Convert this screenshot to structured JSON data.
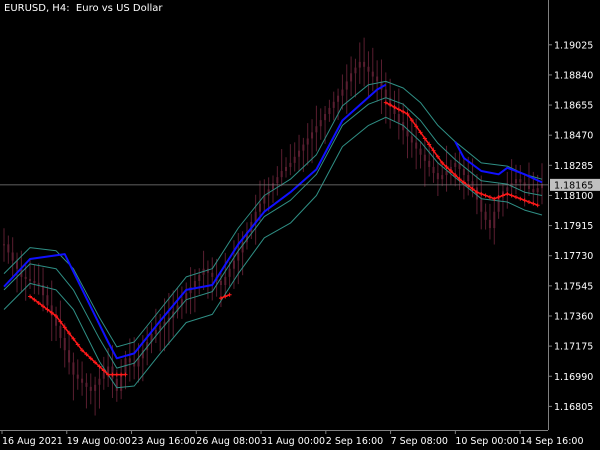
{
  "header": {
    "symbol": "EURUSD, H4:",
    "description": "Euro vs US Dollar"
  },
  "colors": {
    "background": "#000000",
    "candle": "#5a1e30",
    "upper_trend": "#1010ff",
    "lower_trend": "#ff1a1a",
    "channel": "#2f8f85",
    "grid": "#808080",
    "current_price_bg": "#c0c0c0"
  },
  "chart_data": {
    "type": "line",
    "title": "EURUSD, H4:  Euro vs US Dollar",
    "xlabel": "",
    "ylabel": "",
    "ylim": [
      1.1666,
      1.193
    ],
    "y_ticks": [
      "1.19025",
      "1.18840",
      "1.18655",
      "1.18470",
      "1.18285",
      "1.18100",
      "1.17915",
      "1.17730",
      "1.17545",
      "1.17360",
      "1.17175",
      "1.16990",
      "1.16805"
    ],
    "x_tick_labels": [
      "16 Aug 2021",
      "19 Aug 00:00",
      "23 Aug 16:00",
      "26 Aug 08:00",
      "31 Aug 00:00",
      "2 Sep 16:00",
      "7 Sep 08:00",
      "10 Sep 00:00",
      "14 Sep 16:00"
    ],
    "current_price": 1.18165,
    "current_price_label": "1.18165",
    "grid": false,
    "bar_count": 125,
    "series": [
      {
        "role": "trend_up",
        "points": [
          [
            0,
            1.1754
          ],
          [
            6,
            1.1771
          ],
          [
            14,
            1.1774
          ],
          [
            24,
            1.172
          ],
          [
            26,
            1.171
          ],
          [
            30,
            1.1713
          ],
          [
            36,
            1.1733
          ],
          [
            42,
            1.1752
          ],
          [
            48,
            1.1755
          ],
          [
            54,
            1.178
          ],
          [
            60,
            1.18
          ],
          [
            66,
            1.1812
          ],
          [
            72,
            1.1826
          ],
          [
            78,
            1.1856
          ],
          [
            86,
            1.1875
          ],
          [
            88,
            1.1878
          ]
        ]
      },
      {
        "role": "trend_down",
        "points": [
          [
            6,
            1.1748
          ],
          [
            12,
            1.1736
          ],
          [
            18,
            1.1715
          ],
          [
            24,
            1.17
          ],
          [
            28,
            1.17
          ]
        ]
      },
      {
        "role": "trend_down",
        "points": [
          [
            50,
            1.1747
          ],
          [
            52,
            1.1749
          ]
        ]
      },
      {
        "role": "trend_down",
        "points": [
          [
            88,
            1.1867
          ],
          [
            93,
            1.186
          ],
          [
            97,
            1.1845
          ],
          [
            101,
            1.183
          ],
          [
            105,
            1.182
          ],
          [
            109,
            1.1812
          ],
          [
            113,
            1.1808
          ],
          [
            116,
            1.1811
          ],
          [
            120,
            1.1807
          ],
          [
            123,
            1.1804
          ]
        ]
      },
      {
        "role": "trend_up",
        "points": [
          [
            104,
            1.1843
          ],
          [
            106,
            1.1833
          ],
          [
            110,
            1.1825
          ],
          [
            114,
            1.1823
          ],
          [
            116,
            1.1827
          ],
          [
            120,
            1.1823
          ],
          [
            124,
            1.1818
          ]
        ]
      },
      {
        "role": "channel_upper",
        "points": [
          [
            0,
            1.1762
          ],
          [
            6,
            1.1778
          ],
          [
            12,
            1.1776
          ],
          [
            16,
            1.1765
          ],
          [
            22,
            1.1735
          ],
          [
            26,
            1.1717
          ],
          [
            30,
            1.172
          ],
          [
            36,
            1.174
          ],
          [
            42,
            1.176
          ],
          [
            48,
            1.1765
          ],
          [
            54,
            1.179
          ],
          [
            60,
            1.181
          ],
          [
            66,
            1.182
          ],
          [
            72,
            1.1835
          ],
          [
            78,
            1.1865
          ],
          [
            84,
            1.1878
          ],
          [
            88,
            1.188
          ],
          [
            92,
            1.1876
          ],
          [
            96,
            1.1867
          ],
          [
            100,
            1.1853
          ],
          [
            104,
            1.1843
          ],
          [
            110,
            1.183
          ],
          [
            116,
            1.1828
          ],
          [
            120,
            1.1823
          ],
          [
            124,
            1.182
          ]
        ]
      },
      {
        "role": "channel_mid",
        "points": [
          [
            0,
            1.1752
          ],
          [
            6,
            1.1768
          ],
          [
            12,
            1.1765
          ],
          [
            16,
            1.1752
          ],
          [
            22,
            1.1722
          ],
          [
            26,
            1.1704
          ],
          [
            30,
            1.1707
          ],
          [
            36,
            1.1727
          ],
          [
            42,
            1.1746
          ],
          [
            48,
            1.1751
          ],
          [
            54,
            1.1776
          ],
          [
            60,
            1.1797
          ],
          [
            66,
            1.1807
          ],
          [
            72,
            1.1823
          ],
          [
            78,
            1.1853
          ],
          [
            84,
            1.1866
          ],
          [
            88,
            1.187
          ],
          [
            92,
            1.1866
          ],
          [
            96,
            1.1856
          ],
          [
            100,
            1.1842
          ],
          [
            104,
            1.1832
          ],
          [
            110,
            1.1819
          ],
          [
            116,
            1.1817
          ],
          [
            120,
            1.1812
          ],
          [
            124,
            1.181
          ]
        ]
      },
      {
        "role": "channel_lower",
        "points": [
          [
            0,
            1.174
          ],
          [
            6,
            1.1756
          ],
          [
            12,
            1.1752
          ],
          [
            16,
            1.174
          ],
          [
            22,
            1.1708
          ],
          [
            26,
            1.1692
          ],
          [
            30,
            1.1693
          ],
          [
            36,
            1.1713
          ],
          [
            42,
            1.1732
          ],
          [
            48,
            1.1737
          ],
          [
            54,
            1.1762
          ],
          [
            60,
            1.1784
          ],
          [
            66,
            1.1793
          ],
          [
            72,
            1.181
          ],
          [
            78,
            1.184
          ],
          [
            84,
            1.1853
          ],
          [
            88,
            1.1858
          ],
          [
            92,
            1.1853
          ],
          [
            96,
            1.1843
          ],
          [
            100,
            1.183
          ],
          [
            104,
            1.1821
          ],
          [
            110,
            1.1808
          ],
          [
            116,
            1.1806
          ],
          [
            120,
            1.1801
          ],
          [
            124,
            1.1798
          ]
        ]
      },
      {
        "role": "price_path",
        "points": [
          [
            0,
            1.178
          ],
          [
            4,
            1.176
          ],
          [
            8,
            1.1755
          ],
          [
            12,
            1.173
          ],
          [
            16,
            1.17
          ],
          [
            20,
            1.169
          ],
          [
            24,
            1.1705
          ],
          [
            26,
            1.169
          ],
          [
            28,
            1.171
          ],
          [
            30,
            1.1705
          ],
          [
            34,
            1.1725
          ],
          [
            38,
            1.1735
          ],
          [
            42,
            1.175
          ],
          [
            46,
            1.1765
          ],
          [
            50,
            1.1755
          ],
          [
            54,
            1.1775
          ],
          [
            58,
            1.18
          ],
          [
            60,
            1.181
          ],
          [
            64,
            1.1825
          ],
          [
            66,
            1.183
          ],
          [
            70,
            1.1845
          ],
          [
            74,
            1.186
          ],
          [
            78,
            1.1875
          ],
          [
            80,
            1.1885
          ],
          [
            82,
            1.1892
          ],
          [
            86,
            1.188
          ],
          [
            88,
            1.187
          ],
          [
            92,
            1.185
          ],
          [
            96,
            1.1835
          ],
          [
            100,
            1.182
          ],
          [
            104,
            1.183
          ],
          [
            108,
            1.1815
          ],
          [
            110,
            1.18
          ],
          [
            112,
            1.179
          ],
          [
            114,
            1.181
          ],
          [
            118,
            1.182
          ],
          [
            122,
            1.1812
          ],
          [
            124,
            1.1817
          ]
        ]
      }
    ]
  }
}
